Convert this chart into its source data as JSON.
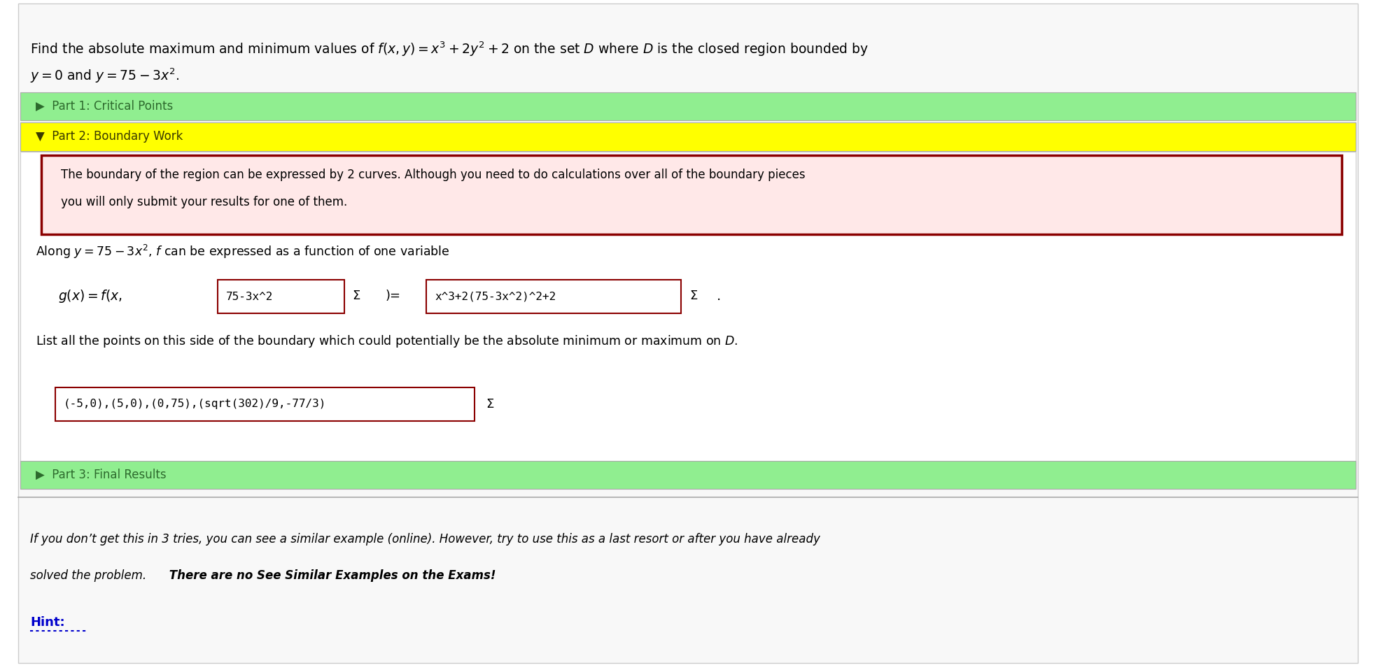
{
  "bg_color": "#ffffff",
  "title_text_line1": "Find the absolute maximum and minimum values of $f(x, y) = x^3 + 2y^2 + 2$ on the set $D$ where $D$ is the closed region bounded by",
  "title_text_line2": "$y = 0$ and $y = 75 - 3x^2$.",
  "part1_label": "▶  Part 1: Critical Points",
  "part1_bg": "#90EE90",
  "part2_label": "▼  Part 2: Boundary Work",
  "part2_bg": "#FFFF00",
  "info_box_bg": "#FFE8E8",
  "info_box_border": "#8B0000",
  "info_text_line1": "The boundary of the region can be expressed by 2 curves. Although you need to do calculations over all of the boundary pieces",
  "info_text_line2": "you will only submit your results for one of them.",
  "along_text": "Along $y = 75 - 3x^2$, $f$ can be expressed as a function of one variable",
  "gx_label": "$g(x) = f(x,$",
  "input1_text": "75-3x^2",
  "sigma_label": "Σ",
  "equals_label": ")=",
  "input2_text": "x^3+2(75-3x^2)^2+2",
  "sigma2_label": "Σ",
  "period": ".",
  "list_text": "List all the points on this side of the boundary which could potentially be the absolute minimum or maximum on $D$.",
  "input3_text": "(-5,0),(5,0),(0,75),(sqrt(302)/9,-77/3)",
  "sigma3_label": "Σ",
  "part3_label": "▶  Part 3: Final Results",
  "part3_bg": "#90EE90",
  "footer_italic": "If you don’t get this in 3 tries, you can see a similar example (online). However, try to use this as a last resort or after you have already",
  "footer_italic2": "solved the problem.",
  "footer_bold": " There are no See Similar Examples on the Exams!",
  "hint_text": "Hint:",
  "hint_color": "#0000CC",
  "separator_color": "#aaaaaa",
  "input_border_color": "#8B0000",
  "input_bg_color": "#ffffff",
  "text_color": "#000000",
  "part_text_color": "#2d6a2d",
  "part2_text_color": "#5a5a00"
}
